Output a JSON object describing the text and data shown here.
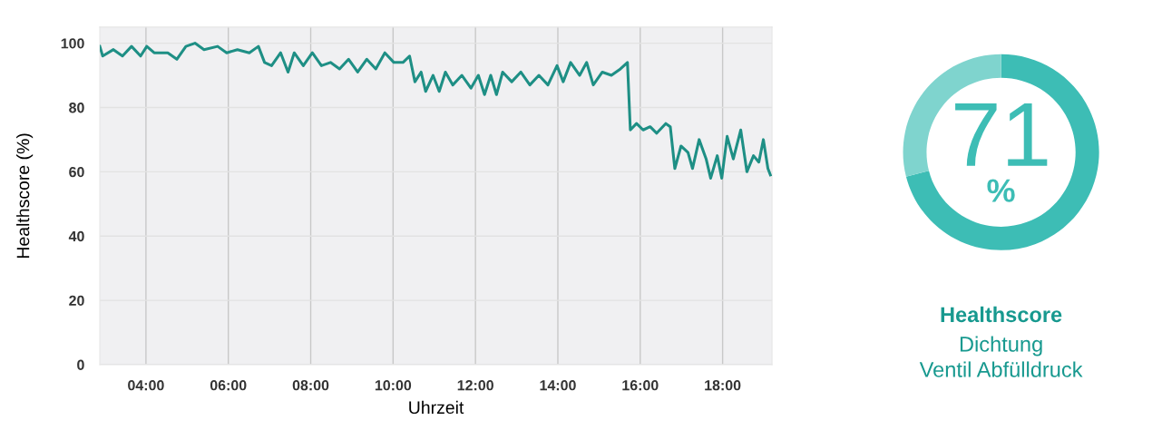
{
  "chart_data": [
    {
      "type": "line",
      "xlabel": "Uhrzeit",
      "ylabel": "Healthscore (%)",
      "x": [
        2.88,
        2.95,
        3.21,
        3.43,
        3.65,
        3.87,
        4.02,
        4.2,
        4.53,
        4.75,
        4.97,
        5.19,
        5.41,
        5.74,
        5.96,
        6.22,
        6.51,
        6.73,
        6.88,
        7.05,
        7.27,
        7.45,
        7.6,
        7.82,
        8.04,
        8.26,
        8.48,
        8.7,
        8.92,
        9.14,
        9.36,
        9.58,
        9.8,
        10.02,
        10.24,
        10.4,
        10.53,
        10.68,
        10.79,
        10.97,
        11.12,
        11.27,
        11.45,
        11.67,
        11.89,
        12.07,
        12.22,
        12.37,
        12.51,
        12.66,
        12.88,
        13.1,
        13.32,
        13.54,
        13.76,
        13.98,
        14.13,
        14.31,
        14.53,
        14.7,
        14.86,
        15.08,
        15.3,
        15.52,
        15.69,
        15.76,
        15.91,
        16.07,
        16.24,
        16.4,
        16.62,
        16.73,
        16.84,
        16.99,
        17.16,
        17.27,
        17.43,
        17.6,
        17.71,
        17.87,
        17.98,
        18.11,
        18.26,
        18.44,
        18.59,
        18.75,
        18.88,
        18.99,
        19.1,
        19.16
      ],
      "series": [
        {
          "color": "#1e8f85",
          "values": [
            99,
            96,
            98,
            96,
            99,
            96,
            99,
            97,
            97,
            95,
            99,
            100,
            98,
            99,
            97,
            98,
            97,
            99,
            94,
            93,
            97,
            91,
            97,
            93,
            97,
            93,
            94,
            92,
            95,
            91,
            95,
            92,
            97,
            94,
            94,
            96,
            88,
            91,
            85,
            90,
            85,
            91,
            87,
            90,
            86,
            90,
            84,
            90,
            84,
            91,
            88,
            91,
            87,
            90,
            87,
            93,
            88,
            94,
            90,
            94,
            87,
            91,
            90,
            92,
            94,
            73,
            75,
            73,
            74,
            72,
            75,
            74,
            61,
            68,
            66,
            61,
            70,
            64,
            58,
            65,
            58,
            71,
            64,
            73,
            60,
            65,
            63,
            70,
            61,
            59
          ]
        }
      ],
      "xlim": [
        2.88,
        19.2
      ],
      "ylim": [
        0,
        105
      ],
      "xticks": [
        {
          "value": 4,
          "label": "04:00"
        },
        {
          "value": 6,
          "label": "06:00"
        },
        {
          "value": 8,
          "label": "08:00"
        },
        {
          "value": 10,
          "label": "10:00"
        },
        {
          "value": 12,
          "label": "12:00"
        },
        {
          "value": 14,
          "label": "14:00"
        },
        {
          "value": 16,
          "label": "16:00"
        },
        {
          "value": 18,
          "label": "18:00"
        }
      ],
      "yticks": [
        0,
        20,
        40,
        60,
        80,
        100
      ],
      "grid": true,
      "line_style": "solid",
      "marker": "none"
    },
    {
      "type": "donut",
      "title": "Healthscore",
      "subtitle": "Dichtung\nVentil Abfülldruck",
      "categories": [
        null,
        null
      ],
      "values": [
        71,
        29
      ],
      "colors": [
        "#3dbdb5",
        "#7fd4ce"
      ],
      "value_labels": [
        "71\n%",
        null
      ]
    }
  ]
}
